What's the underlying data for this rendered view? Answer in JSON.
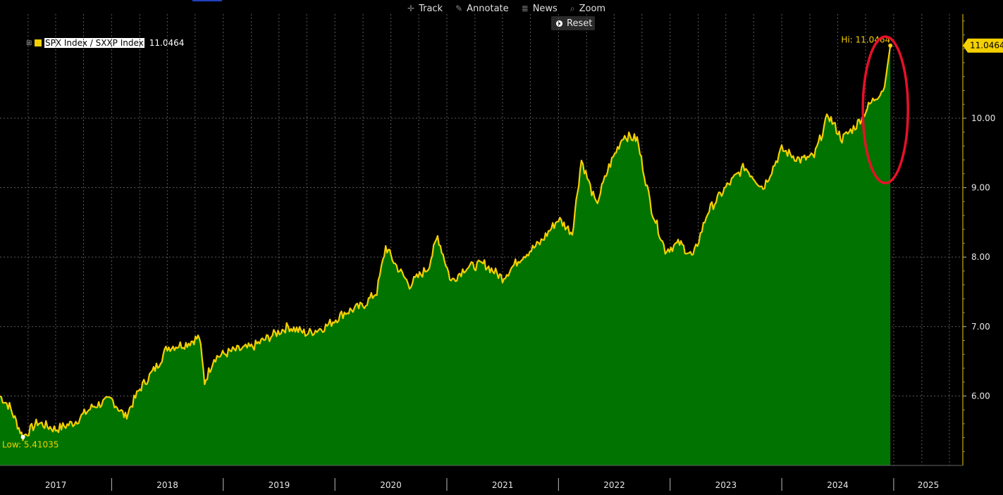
{
  "toolbar": {
    "track": "Track",
    "annotate": "Annotate",
    "news": "News",
    "zoom": "Zoom",
    "reset": "Reset"
  },
  "legend": {
    "series_name": "SPX Index / SXXP Index",
    "last_value": "11.0464"
  },
  "colors": {
    "line": "#f5d000",
    "fill": "#007300",
    "grid": "#5a5a5a",
    "annotation_circle": "#e8102a",
    "price_tag": "#f5d000"
  },
  "chart_data": {
    "type": "area",
    "series": [
      {
        "name": "SPX Index / SXXP Index",
        "points": [
          [
            "2016-10-01",
            6.0
          ],
          [
            "2016-11-01",
            5.85
          ],
          [
            "2016-12-15",
            5.41
          ],
          [
            "2017-02-01",
            5.62
          ],
          [
            "2017-04-01",
            5.52
          ],
          [
            "2017-06-01",
            5.62
          ],
          [
            "2017-08-01",
            5.85
          ],
          [
            "2017-10-01",
            5.95
          ],
          [
            "2017-11-15",
            5.7
          ],
          [
            "2018-01-01",
            6.1
          ],
          [
            "2018-03-01",
            6.45
          ],
          [
            "2018-04-01",
            6.7
          ],
          [
            "2018-06-01",
            6.75
          ],
          [
            "2018-07-15",
            6.85
          ],
          [
            "2018-08-01",
            6.2
          ],
          [
            "2018-09-01",
            6.55
          ],
          [
            "2018-11-01",
            6.65
          ],
          [
            "2019-01-01",
            6.7
          ],
          [
            "2019-03-01",
            6.85
          ],
          [
            "2019-05-01",
            7.0
          ],
          [
            "2019-07-01",
            6.9
          ],
          [
            "2019-09-01",
            7.0
          ],
          [
            "2019-11-01",
            7.2
          ],
          [
            "2020-01-01",
            7.3
          ],
          [
            "2020-02-15",
            7.5
          ],
          [
            "2020-03-15",
            8.15
          ],
          [
            "2020-04-15",
            7.9
          ],
          [
            "2020-06-01",
            7.6
          ],
          [
            "2020-08-01",
            7.85
          ],
          [
            "2020-09-01",
            8.3
          ],
          [
            "2020-10-15",
            7.65
          ],
          [
            "2020-12-01",
            7.85
          ],
          [
            "2021-02-01",
            7.9
          ],
          [
            "2021-04-01",
            7.7
          ],
          [
            "2021-06-01",
            8.0
          ],
          [
            "2021-08-01",
            8.2
          ],
          [
            "2021-10-01",
            8.55
          ],
          [
            "2021-11-15",
            8.35
          ],
          [
            "2021-12-15",
            9.4
          ],
          [
            "2022-02-01",
            8.75
          ],
          [
            "2022-03-15",
            9.3
          ],
          [
            "2022-05-01",
            9.75
          ],
          [
            "2022-06-15",
            9.7
          ],
          [
            "2022-08-01",
            8.7
          ],
          [
            "2022-09-15",
            8.1
          ],
          [
            "2022-11-01",
            8.2
          ],
          [
            "2022-12-15",
            8.0
          ],
          [
            "2023-02-01",
            8.65
          ],
          [
            "2023-04-01",
            9.0
          ],
          [
            "2023-06-01",
            9.3
          ],
          [
            "2023-08-01",
            9.0
          ],
          [
            "2023-10-01",
            9.55
          ],
          [
            "2023-12-01",
            9.4
          ],
          [
            "2024-01-15",
            9.45
          ],
          [
            "2024-03-01",
            10.05
          ],
          [
            "2024-04-15",
            9.7
          ],
          [
            "2024-06-01",
            9.9
          ],
          [
            "2024-07-15",
            10.2
          ],
          [
            "2024-09-01",
            10.45
          ],
          [
            "2024-09-20",
            11.0464
          ]
        ]
      }
    ],
    "x_ticks": [
      "2017",
      "2018",
      "2019",
      "2020",
      "2021",
      "2022",
      "2023",
      "2024",
      "2025"
    ],
    "y_ticks": [
      "6.00",
      "7.00",
      "8.00",
      "9.00",
      "10.00"
    ],
    "yrange": [
      5.0,
      11.5
    ],
    "high_label": "Hi: 11.0464",
    "low_label": "Low: 5.41035",
    "price_tag": "11.0464",
    "grid": true,
    "legend_position": "top-left"
  }
}
